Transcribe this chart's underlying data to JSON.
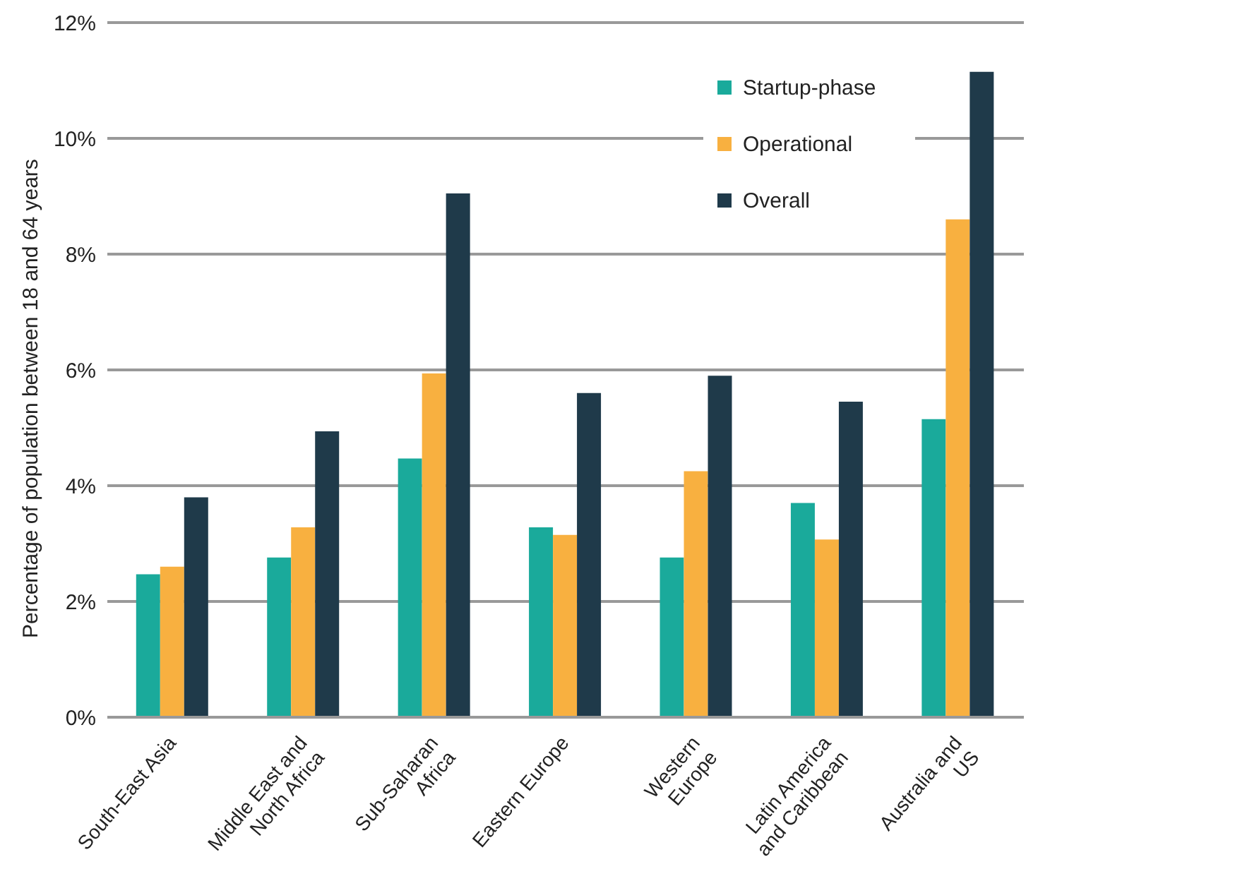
{
  "chart_data": {
    "type": "bar",
    "ylabel": "Percentage of population between 18 and 64 years",
    "categories": [
      "South-East Asia",
      "Middle East and\nNorth Africa",
      "Sub-Saharan\nAfrica",
      "Eastern Europe",
      "Western\nEurope",
      "Latin America\nand Caribbean",
      "Australia and\nUS"
    ],
    "series": [
      {
        "name": "Startup-phase",
        "color": "#1aaa9b",
        "values": [
          2.47,
          2.76,
          4.47,
          3.28,
          2.76,
          3.7,
          5.15
        ]
      },
      {
        "name": "Operational",
        "color": "#f8b040",
        "values": [
          2.6,
          3.28,
          5.94,
          3.15,
          4.25,
          3.07,
          8.6
        ]
      },
      {
        "name": "Overall",
        "color": "#1f3a4a",
        "values": [
          3.8,
          4.94,
          9.05,
          5.6,
          5.9,
          5.45,
          11.15
        ]
      }
    ],
    "ylim": [
      0,
      12
    ],
    "yticks": [
      {
        "value": 0,
        "label": "0%"
      },
      {
        "value": 2,
        "label": "2%"
      },
      {
        "value": 4,
        "label": "4%"
      },
      {
        "value": 6,
        "label": "6%"
      },
      {
        "value": 8,
        "label": "8%"
      },
      {
        "value": 10,
        "label": "10%"
      },
      {
        "value": 12,
        "label": "12%"
      }
    ],
    "grid": "y",
    "legend": "top right"
  }
}
